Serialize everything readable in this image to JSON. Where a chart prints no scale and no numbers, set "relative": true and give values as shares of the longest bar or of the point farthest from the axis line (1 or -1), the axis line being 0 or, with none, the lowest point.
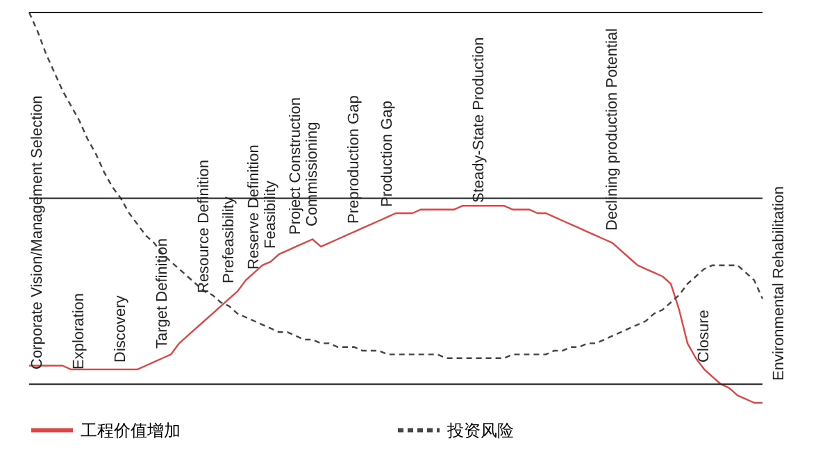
{
  "chart_data": {
    "type": "line",
    "relative": true,
    "legend": "bottom",
    "categories": [
      null,
      "Corporate Vision/Management Selection",
      null,
      null,
      null,
      null,
      "Exploration",
      null,
      null,
      null,
      null,
      "Discovery",
      null,
      null,
      null,
      null,
      "Target Definition",
      null,
      null,
      null,
      null,
      "Resource Definition",
      null,
      null,
      "Prefeasibility",
      null,
      null,
      "Reserve Definition",
      null,
      "Feasibility",
      null,
      null,
      "Project Construction",
      null,
      "Commissioning",
      null,
      null,
      null,
      null,
      "Preproduction Gap",
      null,
      null,
      null,
      "Production Gap",
      null,
      null,
      null,
      null,
      null,
      null,
      null,
      null,
      null,
      null,
      "Steady-State Production",
      null,
      null,
      null,
      null,
      null,
      null,
      null,
      null,
      null,
      null,
      null,
      null,
      null,
      null,
      null,
      "Declining production Potential",
      null,
      null,
      null,
      null,
      null,
      null,
      null,
      null,
      null,
      null,
      "Closure",
      null,
      null,
      null,
      null,
      null,
      null,
      null,
      null,
      "Environmental Rehabilitation"
    ],
    "series": [
      {
        "name": "工程价值增加",
        "color": "#e04545",
        "line_style": "solid",
        "values": [
          0.05,
          0.05,
          0.05,
          0.05,
          0.05,
          0.04,
          0.04,
          0.04,
          0.04,
          0.04,
          0.04,
          0.04,
          0.04,
          0.04,
          0.05,
          0.06,
          0.07,
          0.08,
          0.11,
          0.13,
          0.15,
          0.17,
          0.19,
          0.21,
          0.23,
          0.25,
          0.28,
          0.3,
          0.32,
          0.33,
          0.35,
          0.36,
          0.37,
          0.38,
          0.39,
          0.37,
          0.38,
          0.39,
          0.4,
          0.41,
          0.42,
          0.43,
          0.44,
          0.45,
          0.46,
          0.46,
          0.46,
          0.47,
          0.47,
          0.47,
          0.47,
          0.47,
          0.48,
          0.48,
          0.48,
          0.48,
          0.48,
          0.48,
          0.47,
          0.47,
          0.47,
          0.46,
          0.46,
          0.45,
          0.44,
          0.43,
          0.42,
          0.41,
          0.4,
          0.39,
          0.38,
          0.36,
          0.34,
          0.32,
          0.31,
          0.3,
          0.29,
          0.27,
          0.2,
          0.11,
          0.07,
          0.04,
          0.02,
          0.0,
          -0.01,
          -0.03,
          -0.04,
          -0.05,
          -0.05,
          null,
          null
        ]
      },
      {
        "name": "投资风险",
        "color": "#444444",
        "line_style": "dashed",
        "values": [
          1.0,
          0.95,
          0.89,
          0.84,
          0.79,
          0.75,
          0.71,
          0.66,
          0.62,
          0.57,
          0.53,
          0.5,
          0.46,
          0.43,
          0.4,
          0.38,
          0.35,
          0.33,
          0.31,
          0.29,
          0.27,
          0.25,
          0.24,
          0.22,
          0.21,
          0.19,
          0.18,
          0.17,
          0.16,
          0.15,
          0.14,
          0.14,
          0.13,
          0.12,
          0.12,
          0.11,
          0.11,
          0.1,
          0.1,
          0.1,
          0.09,
          0.09,
          0.09,
          0.08,
          0.08,
          0.08,
          0.08,
          0.08,
          0.08,
          0.08,
          0.07,
          0.07,
          0.07,
          0.07,
          0.07,
          0.07,
          0.07,
          0.07,
          0.08,
          0.08,
          0.08,
          0.08,
          0.08,
          0.09,
          0.09,
          0.1,
          0.1,
          0.11,
          0.11,
          0.12,
          0.13,
          0.14,
          0.15,
          0.16,
          0.17,
          0.19,
          0.2,
          0.22,
          0.24,
          0.27,
          0.29,
          0.31,
          0.32,
          0.32,
          0.32,
          0.32,
          0.3,
          0.28,
          0.23,
          null,
          null
        ]
      }
    ],
    "ref_lines": [
      {
        "axis": "y",
        "value": 0
      },
      {
        "axis": "y",
        "value": 0.5
      },
      {
        "axis": "y",
        "value": 1
      }
    ]
  }
}
